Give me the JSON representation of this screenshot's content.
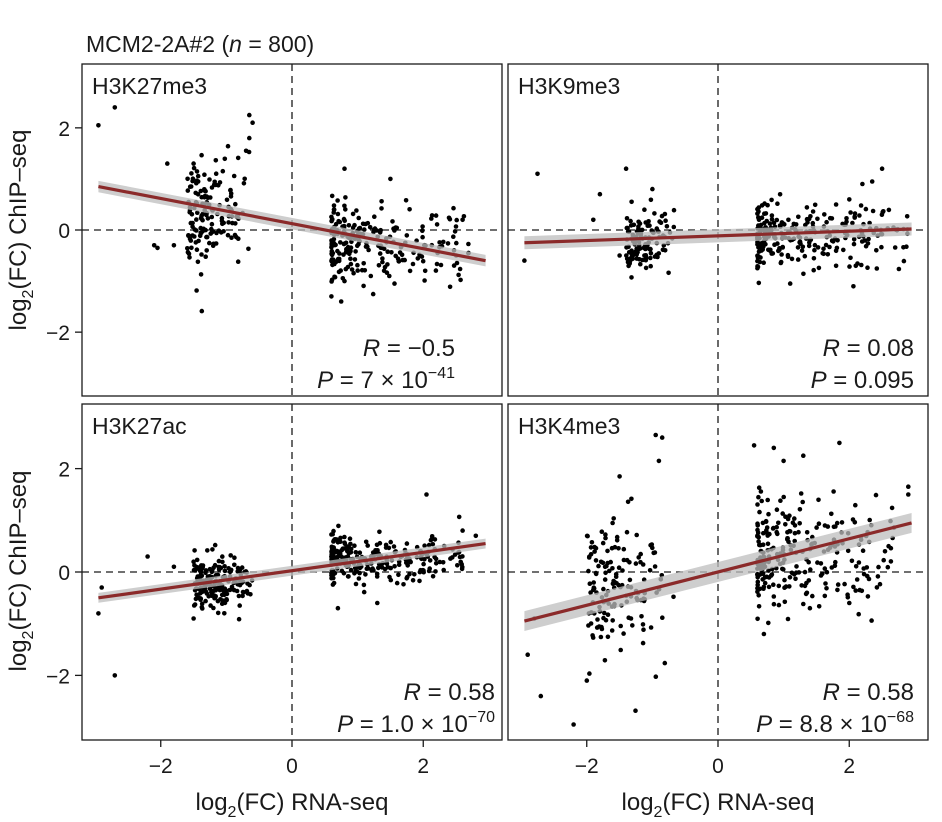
{
  "title": {
    "prefix": "MCM2-2A#2 (",
    "n_label": "n",
    "suffix": " = 800)"
  },
  "axis_labels": {
    "x": {
      "pre": "log",
      "sub": "2",
      "post": "(FC) RNA-seq"
    },
    "y": {
      "pre": "log",
      "sub": "2",
      "post": "(FC) ChIP–seq"
    }
  },
  "colors": {
    "points": "#000000",
    "fit": "#8b2a2a",
    "band": "#bdbdbd"
  },
  "chart_data": [
    {
      "type": "scatter",
      "panel": "top-left",
      "title": "H3K27me3",
      "xlim": [
        -3.2,
        3.2
      ],
      "ylim": [
        -3.25,
        3.25
      ],
      "xticks": [
        -2,
        0,
        2
      ],
      "yticks": [
        -2,
        0,
        2
      ],
      "tick_labels": {
        "-2": "−2",
        "0": "0",
        "2": "2"
      },
      "ref_lines": {
        "x": 0,
        "y": 0
      },
      "fit": {
        "x": [
          -2.95,
          2.95
        ],
        "y": [
          0.85,
          -0.6
        ],
        "band": 0.07
      },
      "stats": {
        "r_label": "R",
        "r_value": " = −0.5",
        "p_label": "P",
        "p_mantissa": " = 7 × 10",
        "p_exp": "−41"
      },
      "points": [
        [
          -2.95,
          2.05
        ],
        [
          -2.7,
          2.4
        ],
        [
          -2.1,
          -0.3
        ],
        [
          -1.9,
          1.3
        ],
        [
          -1.5,
          1.3
        ],
        [
          -0.65,
          2.25
        ],
        [
          -0.6,
          2.1
        ],
        [
          -0.65,
          1.8
        ],
        [
          -0.7,
          1.55
        ],
        [
          -1.8,
          -0.3
        ],
        [
          -1.3,
          -0.4
        ],
        [
          -2.05,
          -0.35
        ],
        [
          0.8,
          1.2
        ],
        [
          1.5,
          1.0
        ],
        [
          2.6,
          0.2
        ],
        [
          0.6,
          -1.3
        ],
        [
          0.75,
          -1.4
        ],
        [
          0.8,
          -1.0
        ],
        [
          1.2,
          -0.9
        ],
        [
          1.8,
          -0.8
        ]
      ],
      "clusters": [
        {
          "seed": 11,
          "count": 150,
          "xmin": -1.6,
          "xmax": -0.6,
          "xpow": 0.55,
          "ymean": 0.3,
          "ysd": 0.5,
          "left": true
        },
        {
          "seed": 12,
          "count": 230,
          "xmin": 0.6,
          "xmax": 2.7,
          "xpow": 2.0,
          "ymean": -0.25,
          "ysd": 0.35
        }
      ]
    },
    {
      "type": "scatter",
      "panel": "top-right",
      "title": "H3K9me3",
      "xlim": [
        -3.2,
        3.2
      ],
      "ylim": [
        -3.25,
        3.25
      ],
      "xticks": [
        -2,
        0,
        2
      ],
      "yticks": [
        -2,
        0,
        2
      ],
      "tick_labels": {
        "-2": "−2",
        "0": "0",
        "2": "2"
      },
      "ref_lines": {
        "x": 0,
        "y": 0
      },
      "fit": {
        "x": [
          -2.95,
          2.95
        ],
        "y": [
          -0.25,
          0.02
        ],
        "band": 0.08
      },
      "stats": {
        "r_label": "R",
        "r_value": " = 0.08",
        "p_label": "P",
        "p_mantissa": " = 0.095",
        "p_exp": ""
      },
      "points": [
        [
          -2.75,
          1.1
        ],
        [
          -2.95,
          -0.6
        ],
        [
          -1.8,
          0.7
        ],
        [
          -1.4,
          1.2
        ],
        [
          -1.9,
          0.2
        ],
        [
          -1.5,
          -0.5
        ],
        [
          2.5,
          1.2
        ],
        [
          2.35,
          0.95
        ],
        [
          2.2,
          0.9
        ],
        [
          2.0,
          0.6
        ],
        [
          1.8,
          0.5
        ],
        [
          1.1,
          -1.05
        ],
        [
          1.8,
          -0.7
        ],
        [
          2.1,
          -0.7
        ],
        [
          -1.0,
          0.8
        ]
      ],
      "clusters": [
        {
          "seed": 21,
          "count": 120,
          "xmin": -1.4,
          "xmax": -0.65,
          "xpow": 0.6,
          "ymean": -0.2,
          "ysd": 0.3,
          "left": true
        },
        {
          "seed": 22,
          "count": 250,
          "xmin": 0.6,
          "xmax": 2.9,
          "xpow": 2.2,
          "ymean": -0.1,
          "ysd": 0.3
        }
      ]
    },
    {
      "type": "scatter",
      "panel": "bottom-left",
      "title": "H3K27ac",
      "xlim": [
        -3.2,
        3.2
      ],
      "ylim": [
        -3.25,
        3.25
      ],
      "xticks": [
        -2,
        0,
        2
      ],
      "yticks": [
        -2,
        0,
        2
      ],
      "tick_labels": {
        "-2": "−2",
        "0": "0",
        "2": "2"
      },
      "ref_lines": {
        "x": 0,
        "y": 0
      },
      "fit": {
        "x": [
          -2.95,
          2.95
        ],
        "y": [
          -0.5,
          0.55
        ],
        "band": 0.06
      },
      "stats": {
        "r_label": "R",
        "r_value": " = 0.58",
        "p_label": "P",
        "p_mantissa": " = 1.0 × 10",
        "p_exp": "−70"
      },
      "points": [
        [
          -2.7,
          -2.0
        ],
        [
          -2.95,
          -0.8
        ],
        [
          -2.9,
          -0.3
        ],
        [
          -2.2,
          0.3
        ],
        [
          -1.8,
          0.1
        ],
        [
          -1.5,
          0.2
        ],
        [
          -1.5,
          -0.9
        ],
        [
          2.05,
          1.5
        ],
        [
          2.6,
          0.8
        ],
        [
          2.8,
          0.7
        ],
        [
          0.7,
          -0.7
        ],
        [
          1.3,
          -0.6
        ]
      ],
      "clusters": [
        {
          "seed": 31,
          "count": 180,
          "xmin": -1.5,
          "xmax": -0.6,
          "xpow": 0.6,
          "ymean": -0.2,
          "ysd": 0.25,
          "left": true
        },
        {
          "seed": 32,
          "count": 280,
          "xmin": 0.6,
          "xmax": 2.6,
          "xpow": 2.0,
          "ymean": 0.25,
          "ysd": 0.22
        }
      ]
    },
    {
      "type": "scatter",
      "panel": "bottom-right",
      "title": "H3K4me3",
      "xlim": [
        -3.2,
        3.2
      ],
      "ylim": [
        -3.25,
        3.25
      ],
      "xticks": [
        -2,
        0,
        2
      ],
      "yticks": [
        -2,
        0,
        2
      ],
      "tick_labels": {
        "-2": "−2",
        "0": "0",
        "2": "2"
      },
      "ref_lines": {
        "x": 0,
        "y": 0
      },
      "fit": {
        "x": [
          -2.95,
          2.95
        ],
        "y": [
          -0.95,
          0.95
        ],
        "band": 0.12
      },
      "stats": {
        "r_label": "R",
        "r_value": " = 0.58",
        "p_label": "P",
        "p_mantissa": " = 8.8 × 10",
        "p_exp": "−68"
      },
      "points": [
        [
          -2.2,
          -2.95
        ],
        [
          -2.7,
          -2.4
        ],
        [
          -2.0,
          -2.1
        ],
        [
          -1.5,
          1.85
        ],
        [
          -0.95,
          2.65
        ],
        [
          -0.85,
          2.6
        ],
        [
          -0.9,
          2.15
        ],
        [
          0.55,
          2.45
        ],
        [
          0.85,
          2.4
        ],
        [
          1.3,
          2.25
        ],
        [
          1.0,
          2.15
        ],
        [
          2.9,
          1.65
        ],
        [
          2.9,
          1.5
        ],
        [
          2.6,
          0.5
        ],
        [
          -2.9,
          -1.6
        ],
        [
          -2.8,
          -0.9
        ],
        [
          0.7,
          -1.2
        ],
        [
          1.4,
          -0.7
        ],
        [
          2.0,
          -0.6
        ]
      ],
      "clusters": [
        {
          "seed": 41,
          "count": 150,
          "xmin": -2.0,
          "xmax": -0.65,
          "xpow": 0.55,
          "ymean": -0.3,
          "ysd": 0.65,
          "left": true
        },
        {
          "seed": 42,
          "count": 260,
          "xmin": 0.6,
          "xmax": 2.7,
          "xpow": 2.0,
          "ymean": 0.35,
          "ysd": 0.55
        }
      ]
    }
  ]
}
